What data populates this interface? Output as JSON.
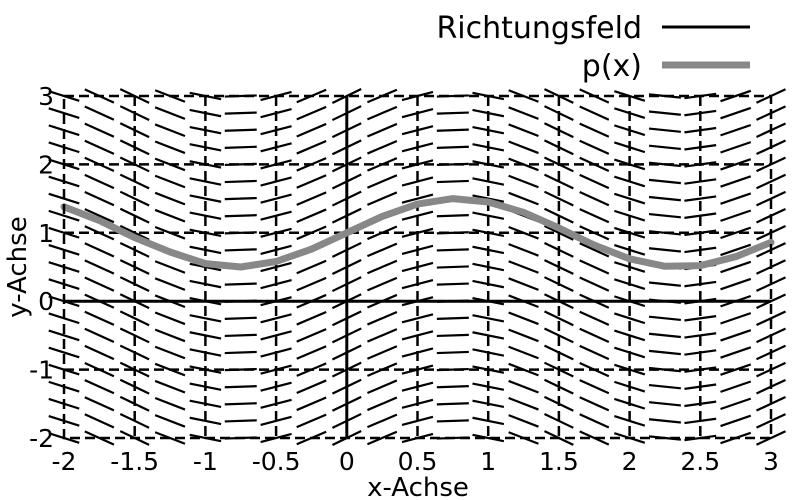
{
  "chart_data": {
    "type": "line",
    "title": "",
    "xlabel": "x-Achse",
    "ylabel": "y-Achse",
    "xlim": [
      -2,
      3
    ],
    "ylim": [
      -2,
      3
    ],
    "xticks": [
      "-2",
      "-1.5",
      "-1",
      "-0.5",
      "0",
      "0.5",
      "1",
      "1.5",
      "2",
      "2.5",
      "3"
    ],
    "yticks": [
      "3",
      "2",
      "1",
      "0",
      "-1",
      "-2"
    ],
    "grid": true,
    "legend_position": "top-right",
    "legend": {
      "direction_field": "Richtungsfeld",
      "curve": "p(x)"
    },
    "direction_field": {
      "equation": "y' = cos(2x)",
      "x_step": 0.25,
      "y_step": 0.25,
      "color": "#000000"
    },
    "series": [
      {
        "name": "p(x)",
        "color": "#888888",
        "x": [
          -2,
          -1.75,
          -1.5,
          -1.25,
          -1,
          -0.75,
          -0.5,
          -0.25,
          0,
          0.25,
          0.5,
          0.75,
          1,
          1.25,
          1.5,
          1.75,
          2,
          2.25,
          2.5,
          2.75,
          3
        ],
        "y": [
          1.38,
          1.18,
          0.93,
          0.72,
          0.55,
          0.5,
          0.58,
          0.76,
          1.0,
          1.24,
          1.42,
          1.5,
          1.45,
          1.3,
          1.07,
          0.82,
          0.62,
          0.51,
          0.52,
          0.65,
          0.86
        ]
      }
    ]
  }
}
